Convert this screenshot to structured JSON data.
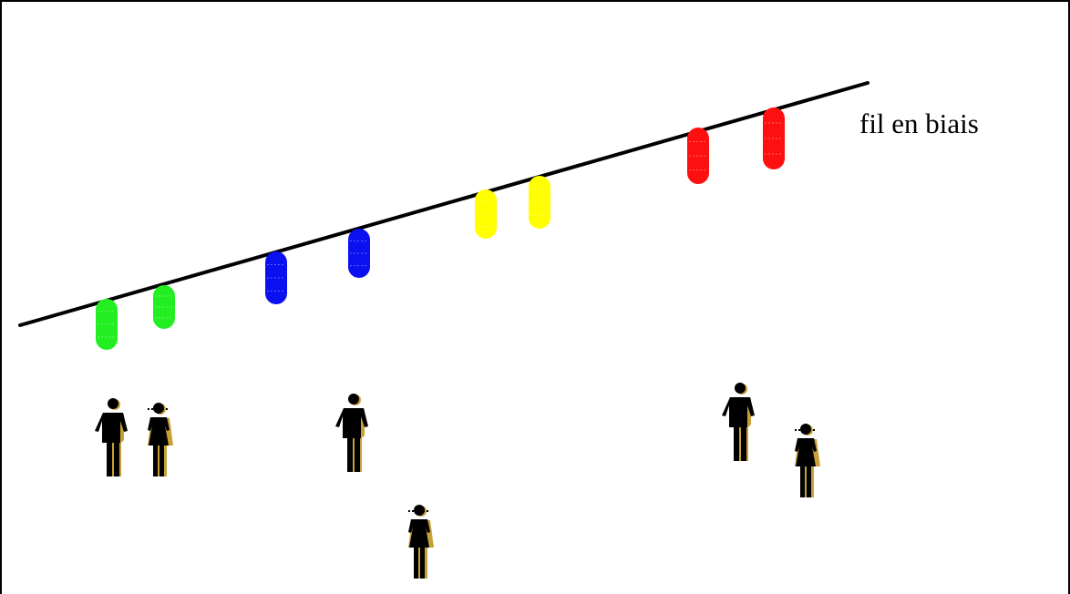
{
  "diagram": {
    "label": "fil en biais",
    "colors": {
      "wire": "#000000",
      "green": "#22ee22",
      "blue": "#0a10f0",
      "yellow": "#ffff00",
      "red": "#ff1010",
      "figure": "#000000",
      "figure_edge": "#c8a038"
    },
    "lanterns": [
      {
        "color": "green"
      },
      {
        "color": "green"
      },
      {
        "color": "blue"
      },
      {
        "color": "blue"
      },
      {
        "color": "yellow"
      },
      {
        "color": "yellow"
      },
      {
        "color": "red"
      },
      {
        "color": "red"
      }
    ],
    "figures": [
      {
        "kind": "man"
      },
      {
        "kind": "woman"
      },
      {
        "kind": "man"
      },
      {
        "kind": "woman"
      },
      {
        "kind": "man"
      },
      {
        "kind": "woman"
      }
    ]
  }
}
